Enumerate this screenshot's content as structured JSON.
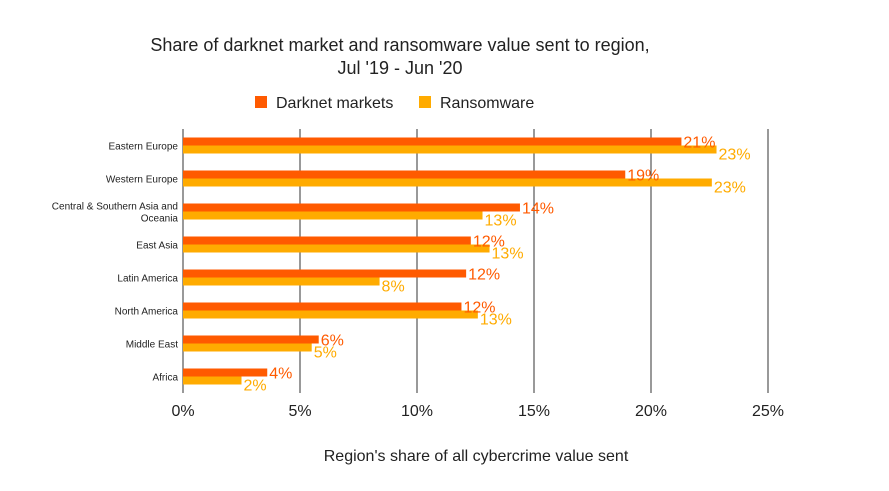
{
  "chart_data": {
    "type": "bar",
    "orientation": "horizontal",
    "title_line1": "Share of darknet market and ransomware value sent to region,",
    "title_line2": "Jul '19 - Jun '20",
    "xlabel": "Region's share of all cybercrime value sent",
    "ylabel": "",
    "xlim": [
      0,
      25
    ],
    "xticks": [
      "0%",
      "5%",
      "10%",
      "15%",
      "20%",
      "25%"
    ],
    "xtick_values": [
      0,
      5,
      10,
      15,
      20,
      25
    ],
    "legend_position": "top-center",
    "categories": [
      "Eastern Europe",
      "Western Europe",
      "Central & Southern Asia and Oceania",
      "East Asia",
      "Latin America",
      "North America",
      "Middle East",
      "Africa"
    ],
    "series": [
      {
        "name": "Darknet markets",
        "color": "#ff5a00",
        "values": [
          21.3,
          18.9,
          14.4,
          12.3,
          12.1,
          11.9,
          5.8,
          3.6
        ],
        "labels": [
          "21%",
          "19%",
          "14%",
          "12%",
          "12%",
          "12%",
          "6%",
          "4%"
        ]
      },
      {
        "name": "Ransomware",
        "color": "#ffab00",
        "values": [
          22.8,
          22.6,
          12.8,
          13.1,
          8.4,
          12.6,
          5.5,
          2.5
        ],
        "labels": [
          "23%",
          "23%",
          "13%",
          "13%",
          "8%",
          "13%",
          "5%",
          "2%"
        ]
      }
    ]
  }
}
